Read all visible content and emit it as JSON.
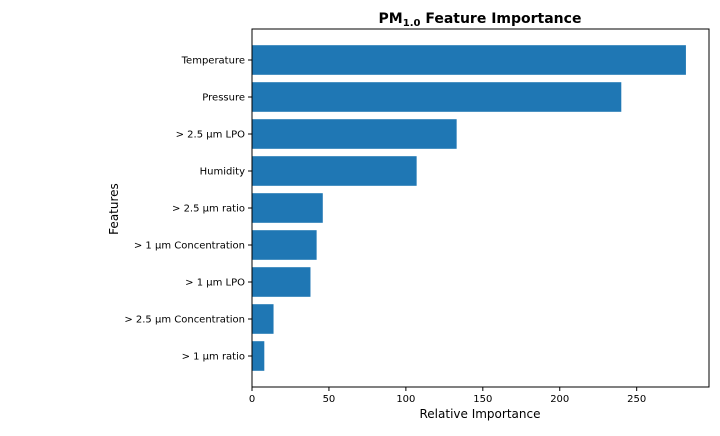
{
  "chart_data": {
    "type": "bar",
    "orientation": "horizontal",
    "title": {
      "prefix": "PM",
      "subscript": "1.0",
      "suffix": " Feature Importance"
    },
    "xlabel": "Relative Importance",
    "ylabel": "Features",
    "xlim": [
      0,
      297
    ],
    "xticks": [
      0,
      50,
      100,
      150,
      200,
      250
    ],
    "categories": [
      "Temperature",
      "Pressure",
      "> 2.5 µm LPO",
      "Humidity",
      "> 2.5 µm ratio",
      "> 1 µm Concentration",
      "> 1 µm LPO",
      "> 2.5 µm Concentration",
      "> 1 µm ratio"
    ],
    "values": [
      282,
      240,
      133,
      107,
      46,
      42,
      38,
      14,
      8
    ],
    "bar_color": "#1f77b4",
    "grid": false
  }
}
